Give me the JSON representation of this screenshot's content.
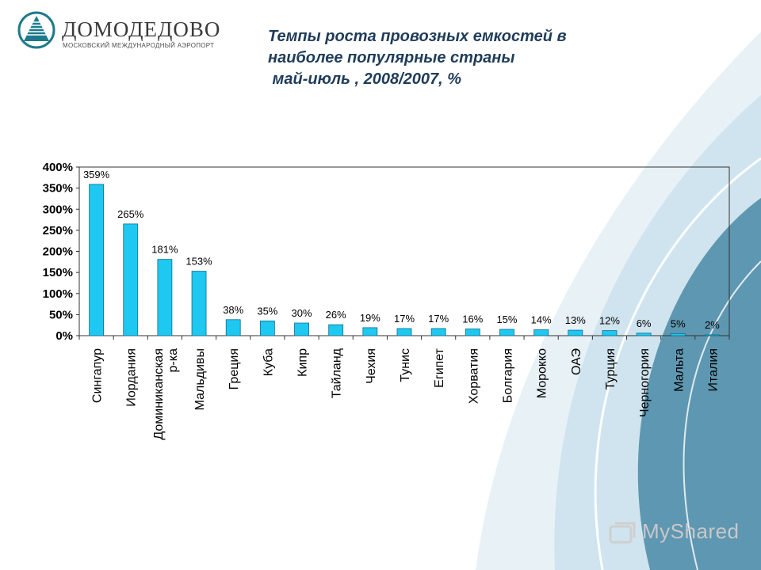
{
  "header": {
    "logo_name": "ДОМОДЕДОВО",
    "logo_sub": "МОСКОВСКИЙ МЕЖДУНАРОДНЫЙ АЭРОПОРТ",
    "title_lines": [
      "Темпы роста провозных емкостей в",
      "наиболее популярные страны",
      " май-июль , 2008/2007, %"
    ]
  },
  "watermark": "MyShared",
  "colors": {
    "bar": "#1ec8f0",
    "bar_stroke": "#0f6e8c",
    "title": "#1f3c5a",
    "swoosh_dark": "#4a8aa6",
    "swoosh_light": "#cfe4ee"
  },
  "chart_data": {
    "type": "bar",
    "categories": [
      "Сингапур",
      "Иордания",
      "Доминиканская р-ка",
      "Мальдивы",
      "Греция",
      "Куба",
      "Кипр",
      "Тайланд",
      "Чехия",
      "Тунис",
      "Египет",
      "Хорватия",
      "Болгария",
      "Морокко",
      "ОАЭ",
      "Турция",
      "Черногория",
      "Мальта",
      "Италия"
    ],
    "values": [
      359,
      265,
      181,
      153,
      38,
      35,
      30,
      26,
      19,
      17,
      17,
      16,
      15,
      14,
      13,
      12,
      6,
      5,
      2
    ],
    "data_labels": [
      "359%",
      "265%",
      "181%",
      "153%",
      "38%",
      "35%",
      "30%",
      "26%",
      "19%",
      "17%",
      "17%",
      "16%",
      "15%",
      "14%",
      "13%",
      "12%",
      "6%",
      "5%",
      "2%"
    ],
    "yticks": [
      "0%",
      "50%",
      "100%",
      "150%",
      "200%",
      "250%",
      "300%",
      "350%",
      "400%"
    ],
    "ylim": [
      0,
      400
    ],
    "title": "",
    "xlabel": "",
    "ylabel": "",
    "grid": false,
    "legend": "none"
  }
}
